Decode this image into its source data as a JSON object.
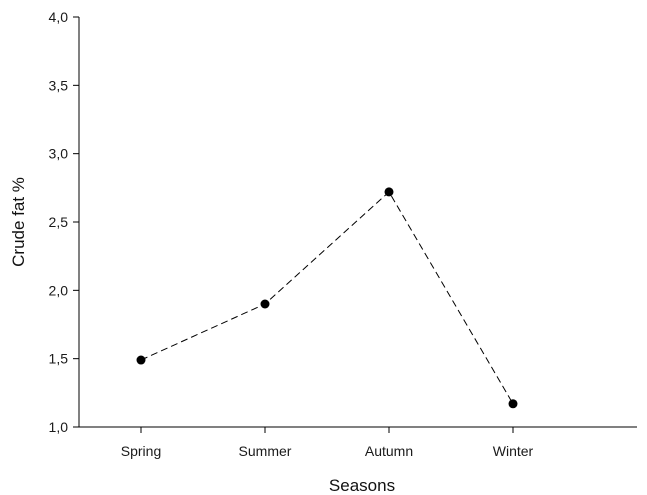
{
  "chart_data": {
    "type": "line",
    "title": "",
    "xlabel": "Seasons",
    "ylabel": "Crude fat %",
    "categories": [
      "Spring",
      "Summer",
      "Autumn",
      "Winter"
    ],
    "values": [
      1.49,
      1.9,
      2.72,
      1.17
    ],
    "ylim": [
      1.0,
      4.0
    ],
    "yticks": [
      1.0,
      1.5,
      2.0,
      2.5,
      3.0,
      3.5,
      4.0
    ],
    "ytick_labels": [
      "1,0",
      "1,5",
      "2,0",
      "2,5",
      "3,0",
      "3,5",
      "4,0"
    ],
    "line_style": "dashed",
    "marker": "circle",
    "grid": false,
    "legend": "none",
    "colors": {
      "line": "#000000",
      "marker": "#000000",
      "axis": "#000000"
    }
  }
}
